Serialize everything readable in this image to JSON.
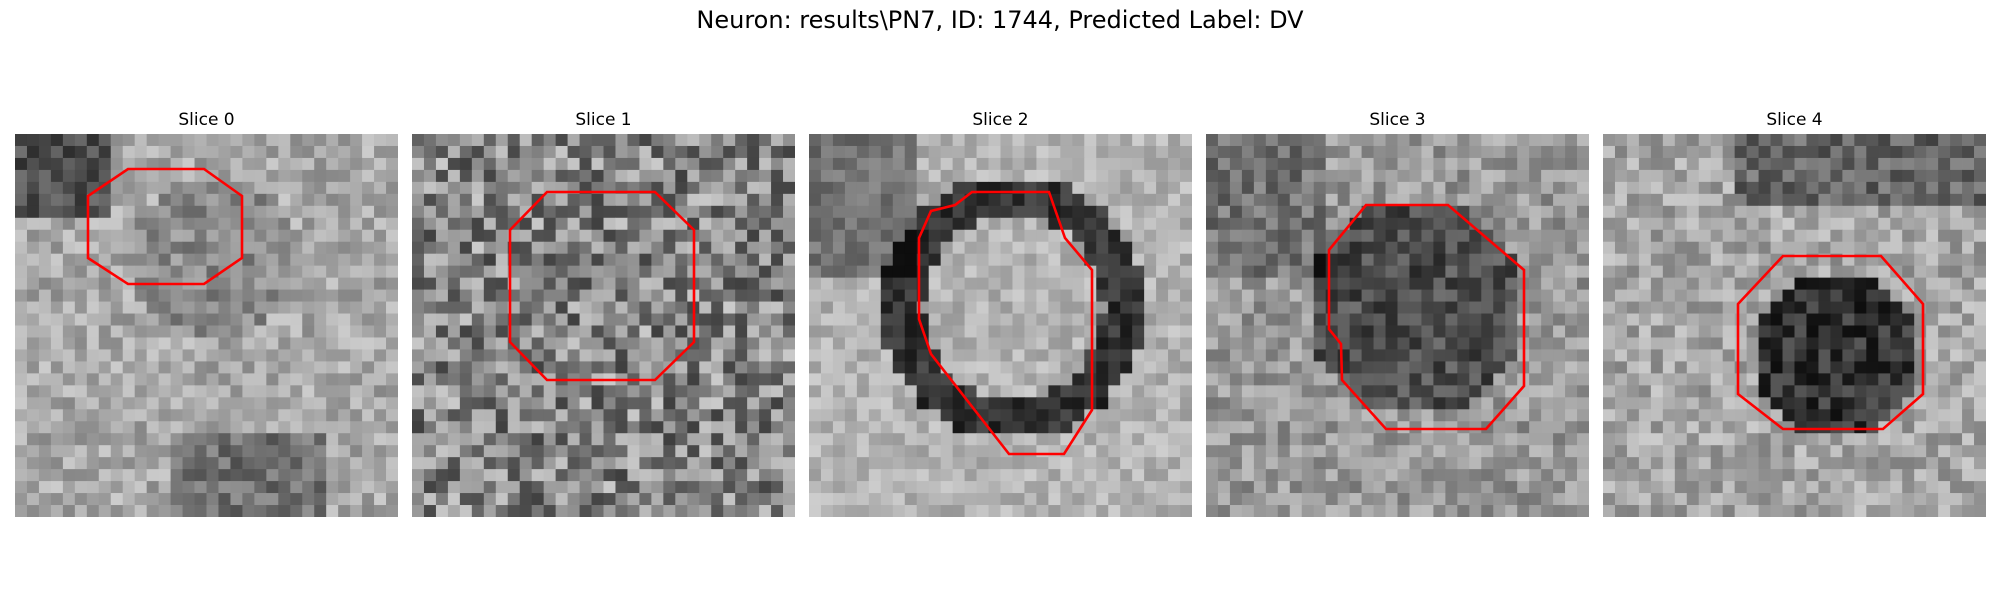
{
  "figure": {
    "title": "Neuron: results\\PN7, ID: 1744, Predicted Label: DV"
  },
  "outline_color": "#ff0000",
  "panels": [
    {
      "title": "Slice 0",
      "tone": "light",
      "seed": 11
    },
    {
      "title": "Slice 1",
      "tone": "noisy",
      "seed": 23
    },
    {
      "title": "Slice 2",
      "tone": "ring",
      "seed": 37
    },
    {
      "title": "Slice 3",
      "tone": "dark-center",
      "seed": 51
    },
    {
      "title": "Slice 4",
      "tone": "dark-core",
      "seed": 67
    }
  ]
}
